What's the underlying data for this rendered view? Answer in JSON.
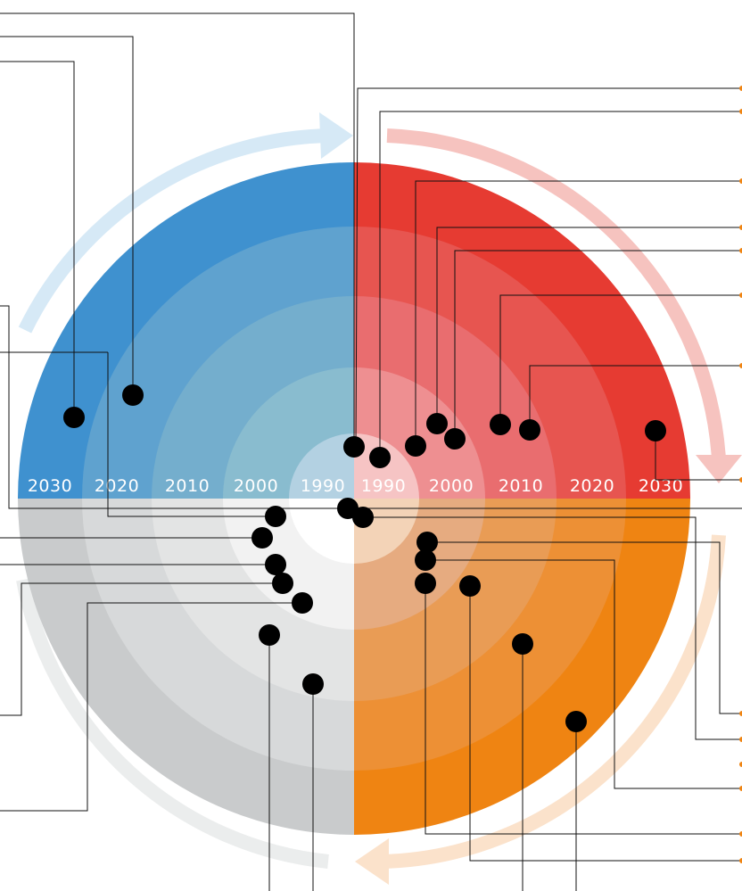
{
  "diagram": {
    "quadrants": [
      {
        "name": "top-left",
        "color": "#3f91cf"
      },
      {
        "name": "top-right",
        "color": "#e63b32"
      },
      {
        "name": "bottom-right",
        "color": "#ef8412"
      },
      {
        "name": "bottom-left",
        "color": "#c9cbcc"
      }
    ],
    "arrow_colors": {
      "top-left": "#d6e9f6",
      "top-right": "#f6c3bf",
      "bottom-right": "#fbe2cb",
      "bottom-left": "#ebeded"
    },
    "years_left": [
      "2030",
      "2020",
      "2010",
      "2000",
      "1990"
    ],
    "years_right": [
      "1990",
      "2000",
      "2010",
      "2020",
      "2030"
    ]
  }
}
